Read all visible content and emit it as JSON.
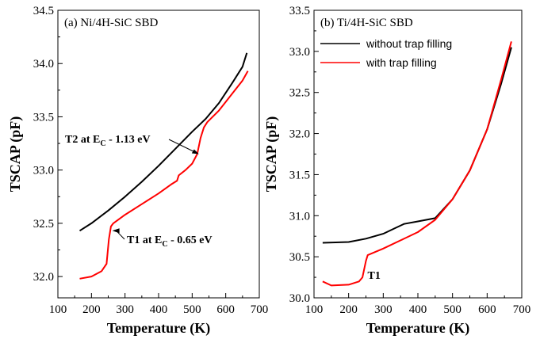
{
  "chart_data": [
    {
      "type": "line",
      "panel_label": "(a) Ni/4H-SiC SBD",
      "xlabel": "Temperature (K)",
      "ylabel": "TSCAP (pF)",
      "xlim": [
        100,
        700
      ],
      "ylim": [
        31.8,
        34.5
      ],
      "xticks": [
        100,
        200,
        300,
        400,
        500,
        600,
        700
      ],
      "yticks": [
        32.0,
        32.5,
        33.0,
        33.5,
        34.0,
        34.5
      ],
      "ytick_labels": [
        "32.0",
        "32.5",
        "33.0",
        "33.5",
        "34.0",
        "34.5"
      ],
      "series": [
        {
          "color": "#000000",
          "x": [
            165,
            200,
            250,
            300,
            350,
            400,
            450,
            500,
            540,
            580,
            620,
            650,
            663
          ],
          "y": [
            32.43,
            32.5,
            32.62,
            32.75,
            32.89,
            33.04,
            33.2,
            33.36,
            33.48,
            33.63,
            33.82,
            33.97,
            34.1
          ]
        },
        {
          "color": "#ff0000",
          "x": [
            165,
            200,
            230,
            245,
            252,
            258,
            265,
            300,
            350,
            400,
            440,
            455,
            460,
            480,
            500,
            515,
            525,
            535,
            545,
            580,
            620,
            650,
            666
          ],
          "y": [
            31.98,
            32.0,
            32.05,
            32.12,
            32.35,
            32.47,
            32.5,
            32.58,
            32.68,
            32.78,
            32.87,
            32.9,
            32.95,
            33.0,
            33.06,
            33.15,
            33.3,
            33.4,
            33.45,
            33.56,
            33.72,
            33.84,
            33.93
          ]
        }
      ],
      "annotations": [
        {
          "main": "T2 at E",
          "sub": "C",
          "tail": " - 1.13 eV",
          "x": 520,
          "y": 33.15
        },
        {
          "main": "T1 at E",
          "sub": "C",
          "tail": " - 0.65 eV",
          "x": 262,
          "y": 32.43
        }
      ]
    },
    {
      "type": "line",
      "panel_label": "(b) Ti/4H-SiC SBD",
      "xlabel": "Temperature (K)",
      "ylabel": "TSCAP (pF)",
      "xlim": [
        100,
        700
      ],
      "ylim": [
        30.0,
        33.5
      ],
      "xticks": [
        100,
        200,
        300,
        400,
        500,
        600,
        700
      ],
      "yticks": [
        30.0,
        30.5,
        31.0,
        31.5,
        32.0,
        32.5,
        33.0,
        33.5
      ],
      "ytick_labels": [
        "30.0",
        "30.5",
        "31.0",
        "31.5",
        "32.0",
        "32.5",
        "33.0",
        "33.5"
      ],
      "legend": {
        "position": "top-left",
        "entries": [
          {
            "label": "without trap filling",
            "color": "#000000"
          },
          {
            "label": "with trap filling",
            "color": "#ff0000"
          }
        ]
      },
      "series": [
        {
          "name": "without trap filling",
          "color": "#000000",
          "x": [
            125,
            200,
            250,
            300,
            330,
            360,
            400,
            450,
            500,
            550,
            600,
            640,
            670
          ],
          "y": [
            30.67,
            30.68,
            30.72,
            30.78,
            30.84,
            30.9,
            30.93,
            30.97,
            31.2,
            31.55,
            32.05,
            32.6,
            33.05
          ]
        },
        {
          "name": "with trap filling",
          "color": "#ff0000",
          "x": [
            125,
            150,
            200,
            230,
            240,
            250,
            255,
            300,
            350,
            400,
            450,
            500,
            550,
            600,
            640,
            670
          ],
          "y": [
            30.2,
            30.15,
            30.16,
            30.2,
            30.25,
            30.45,
            30.52,
            30.6,
            30.7,
            30.8,
            30.95,
            31.2,
            31.55,
            32.05,
            32.65,
            33.12
          ]
        }
      ],
      "annotations": [
        {
          "main": "T1",
          "x": 250,
          "y": 30.5
        }
      ]
    }
  ]
}
